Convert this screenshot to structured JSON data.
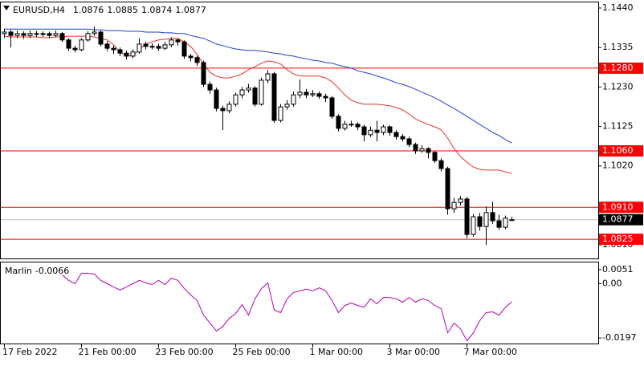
{
  "chart_data": {
    "type": "candlestick",
    "symbol": "EURUSD,H4",
    "categories": [
      "17 Feb 2022",
      null,
      null,
      null,
      null,
      null,
      null,
      null,
      null,
      null,
      null,
      null,
      "21 Feb 00:00",
      null,
      null,
      null,
      null,
      null,
      null,
      null,
      null,
      null,
      null,
      null,
      "23 Feb 00:00",
      null,
      null,
      null,
      null,
      null,
      null,
      null,
      null,
      null,
      null,
      null,
      "25 Feb 00:00",
      null,
      null,
      null,
      null,
      null,
      null,
      null,
      null,
      null,
      null,
      null,
      "1 Mar 00:00",
      null,
      null,
      null,
      null,
      null,
      null,
      null,
      null,
      null,
      null,
      null,
      "3 Mar 00:00",
      null,
      null,
      null,
      null,
      null,
      null,
      null,
      null,
      null,
      null,
      null,
      "7 Mar 00:00",
      null,
      null,
      null,
      null,
      null,
      null,
      null
    ],
    "open": [
      1.1372,
      1.1376,
      1.1367,
      1.1372,
      1.1367,
      1.1372,
      1.137,
      1.1372,
      1.1367,
      1.1372,
      1.1355,
      1.1333,
      1.1329,
      1.1355,
      1.1372,
      1.1376,
      1.1344,
      1.1333,
      1.1329,
      1.132,
      1.1312,
      1.1323,
      1.1344,
      1.1338,
      1.1338,
      1.1333,
      1.1342,
      1.1355,
      1.135,
      1.1312,
      1.1308,
      1.1295,
      1.1237,
      1.1222,
      1.1173,
      1.1167,
      1.1184,
      1.1209,
      1.1222,
      1.1227,
      1.1184,
      1.1248,
      1.1265,
      1.1141,
      1.1177,
      1.1184,
      1.1209,
      1.1216,
      1.1209,
      1.1212,
      1.1205,
      1.1201,
      1.1152,
      1.112,
      1.1131,
      1.1131,
      1.1124,
      1.1103,
      1.1115,
      1.1109,
      1.1124,
      1.1109,
      1.1098,
      1.1092,
      1.1077,
      1.106,
      1.1066,
      1.1056,
      1.1034,
      1.1013,
      1.0906,
      1.0923,
      1.0932,
      1.0838,
      1.0885,
      1.0859,
      1.0896,
      1.0874,
      1.0857,
      1.0876
    ],
    "high": [
      1.1385,
      1.1382,
      1.138,
      1.1378,
      1.138,
      1.1379,
      1.1378,
      1.1377,
      1.138,
      1.1376,
      1.136,
      1.134,
      1.136,
      1.1378,
      1.139,
      1.138,
      1.1352,
      1.134,
      1.1335,
      1.1326,
      1.133,
      1.136,
      1.135,
      1.1346,
      1.1345,
      1.135,
      1.1362,
      1.136,
      1.1354,
      1.1318,
      1.1313,
      1.13,
      1.1245,
      1.1228,
      1.118,
      1.1192,
      1.1215,
      1.123,
      1.1238,
      1.1232,
      1.1255,
      1.1275,
      1.127,
      1.1185,
      1.1195,
      1.1218,
      1.125,
      1.1225,
      1.1222,
      1.1218,
      1.1212,
      1.1206,
      1.1158,
      1.114,
      1.114,
      1.1136,
      1.113,
      1.1125,
      1.114,
      1.113,
      1.1128,
      1.1115,
      1.1105,
      1.1098,
      1.1082,
      1.1075,
      1.107,
      1.106,
      1.104,
      1.1018,
      1.0935,
      1.094,
      1.0938,
      1.0892,
      1.0895,
      1.0912,
      1.0925,
      1.089,
      1.0888,
      1.0885
    ],
    "low": [
      1.136,
      1.1335,
      1.136,
      1.1358,
      1.136,
      1.1362,
      1.1363,
      1.136,
      1.1362,
      1.135,
      1.1326,
      1.1322,
      1.1325,
      1.135,
      1.1366,
      1.1338,
      1.1326,
      1.1318,
      1.1312,
      1.1303,
      1.1306,
      1.1318,
      1.133,
      1.133,
      1.1326,
      1.1328,
      1.1336,
      1.134,
      1.1305,
      1.1298,
      1.1286,
      1.123,
      1.1212,
      1.1165,
      1.1115,
      1.116,
      1.1178,
      1.12,
      1.1215,
      1.1178,
      1.118,
      1.124,
      1.1135,
      1.1136,
      1.117,
      1.1178,
      1.12,
      1.12,
      1.1203,
      1.1198,
      1.119,
      1.1145,
      1.1112,
      1.1114,
      1.1124,
      1.1115,
      1.1085,
      1.1097,
      1.1085,
      1.1102,
      1.11,
      1.109,
      1.1085,
      1.107,
      1.1052,
      1.1055,
      1.104,
      1.1028,
      1.1005,
      1.089,
      1.0895,
      1.0915,
      1.0828,
      1.0832,
      1.0848,
      1.081,
      1.0866,
      1.085,
      1.0852,
      1.0874
    ],
    "close": [
      1.1376,
      1.1367,
      1.1372,
      1.1367,
      1.1372,
      1.137,
      1.1372,
      1.1367,
      1.1372,
      1.1355,
      1.1333,
      1.1329,
      1.1355,
      1.1372,
      1.1376,
      1.1344,
      1.1333,
      1.1329,
      1.132,
      1.1312,
      1.1323,
      1.1344,
      1.1338,
      1.1338,
      1.1333,
      1.1342,
      1.1355,
      1.135,
      1.1312,
      1.1308,
      1.1295,
      1.1237,
      1.1222,
      1.1173,
      1.1167,
      1.1184,
      1.1209,
      1.1222,
      1.1227,
      1.1184,
      1.1248,
      1.1265,
      1.1141,
      1.1177,
      1.1184,
      1.1209,
      1.1216,
      1.1209,
      1.1212,
      1.1205,
      1.1201,
      1.1152,
      1.112,
      1.1131,
      1.1131,
      1.1124,
      1.1103,
      1.1115,
      1.1109,
      1.1124,
      1.1109,
      1.1098,
      1.1092,
      1.1077,
      1.106,
      1.1066,
      1.1056,
      1.1034,
      1.1013,
      1.0906,
      1.0923,
      1.0932,
      1.0838,
      1.0885,
      1.0859,
      1.0896,
      1.0874,
      1.0857,
      1.0881,
      1.0877
    ],
    "up_color": "#ffffff",
    "down_color": "#000000",
    "series": [
      {
        "color": "#e8302a",
        "values": [
          1.1365,
          1.1363,
          1.1363,
          1.1363,
          1.1363,
          1.1363,
          1.1361,
          1.1361,
          1.1363,
          1.1363,
          1.1365,
          1.1365,
          1.1365,
          1.1365,
          1.1363,
          1.1359,
          1.1355,
          1.1342,
          1.1323,
          1.1312,
          1.1314,
          1.1329,
          1.1344,
          1.135,
          1.1355,
          1.1357,
          1.1359,
          1.1359,
          1.135,
          1.1338,
          1.1316,
          1.1291,
          1.1269,
          1.1259,
          1.1254,
          1.1254,
          1.1259,
          1.1265,
          1.1276,
          1.1284,
          1.1293,
          1.1299,
          1.1297,
          1.1291,
          1.1276,
          1.1265,
          1.1259,
          1.1259,
          1.1259,
          1.1259,
          1.1254,
          1.1244,
          1.1227,
          1.1209,
          1.1195,
          1.1188,
          1.1184,
          1.1184,
          1.1184,
          1.1182,
          1.118,
          1.1175,
          1.1169,
          1.1158,
          1.1145,
          1.1137,
          1.113,
          1.1124,
          1.1116,
          1.1094,
          1.1066,
          1.1045,
          1.103,
          1.1017,
          1.1011,
          1.1009,
          1.1009,
          1.1009,
          1.1004,
          1.1
        ]
      },
      {
        "color": "#1f3fd6",
        "values": [
          1.1384,
          1.1384,
          1.1384,
          1.1384,
          1.1384,
          1.1384,
          1.1384,
          1.1384,
          1.1384,
          1.1384,
          1.1384,
          1.1384,
          1.1384,
          1.1384,
          1.1382,
          1.1382,
          1.138,
          1.138,
          1.138,
          1.1378,
          1.1378,
          1.1378,
          1.1376,
          1.1376,
          1.1376,
          1.1374,
          1.1374,
          1.1372,
          1.1372,
          1.1367,
          1.1363,
          1.1359,
          1.1352,
          1.1344,
          1.134,
          1.1335,
          1.1331,
          1.1329,
          1.1327,
          1.1327,
          1.1325,
          1.1323,
          1.132,
          1.1318,
          1.1314,
          1.1312,
          1.1308,
          1.1305,
          1.1301,
          1.1299,
          1.1295,
          1.1293,
          1.1288,
          1.1284,
          1.128,
          1.1273,
          1.1269,
          1.1265,
          1.1259,
          1.1254,
          1.1248,
          1.1241,
          1.1237,
          1.1231,
          1.1224,
          1.1216,
          1.1209,
          1.1201,
          1.1192,
          1.1182,
          1.1173,
          1.1162,
          1.1152,
          1.1141,
          1.113,
          1.112,
          1.1109,
          1.1101,
          1.109,
          1.1081
        ]
      }
    ],
    "levels": [
      {
        "value": 1.128,
        "label": "1.1280"
      },
      {
        "value": 1.106,
        "label": "1.1060"
      },
      {
        "value": 1.091,
        "label": "1.0910"
      },
      1.0825
    ],
    "level_color": "#ff0000",
    "ylim": [
      1.0774,
      1.1457
    ],
    "yticks": [
      {
        "value": 1.144,
        "label": "1.1440"
      },
      1.1335,
      {
        "value": 1.123,
        "label": "1.1230"
      },
      1.1125,
      {
        "value": 1.102,
        "label": "1.1020"
      },
      {
        "value": 1.081,
        "label": "1.0810"
      }
    ],
    "indicator": {
      "type": "line",
      "name": "Marlin",
      "color": "#b400b4",
      "values": [
        null,
        null,
        null,
        null,
        null,
        null,
        null,
        null,
        null,
        0.0032,
        0.0012,
        0,
        0.0038,
        0.0038,
        0.0035,
        0.0012,
        0,
        -0.0012,
        -0.0023,
        -0.0012,
        0,
        0.0012,
        0.0003,
        -0.0003,
        0.0012,
        -0.0003,
        0.002,
        0.0012,
        -0.0018,
        -0.0041,
        -0.0061,
        -0.0114,
        -0.0143,
        -0.0172,
        -0.0155,
        -0.0126,
        -0.0108,
        -0.0076,
        -0.0114,
        -0.0055,
        -0.0018,
        0.0003,
        -0.0096,
        -0.0105,
        -0.0055,
        -0.0032,
        -0.0026,
        -0.002,
        -0.0026,
        -0.0015,
        -0.0026,
        -0.0061,
        -0.0105,
        -0.0079,
        -0.007,
        -0.0079,
        -0.0085,
        -0.0055,
        -0.0073,
        -0.005,
        -0.005,
        -0.0055,
        -0.0067,
        -0.005,
        -0.0067,
        -0.0055,
        -0.0061,
        -0.0079,
        -0.0091,
        -0.0178,
        -0.0143,
        -0.0164,
        -0.0207,
        -0.0178,
        -0.0134,
        -0.0105,
        -0.0102,
        -0.0114,
        -0.0085,
        -0.0066
      ],
      "ylim": [
        -0.0217,
        0.0077
      ],
      "yticks": [
        0.0051,
        {
          "value": 0,
          "label": "0.00"
        },
        -0.0197
      ]
    }
  }
}
